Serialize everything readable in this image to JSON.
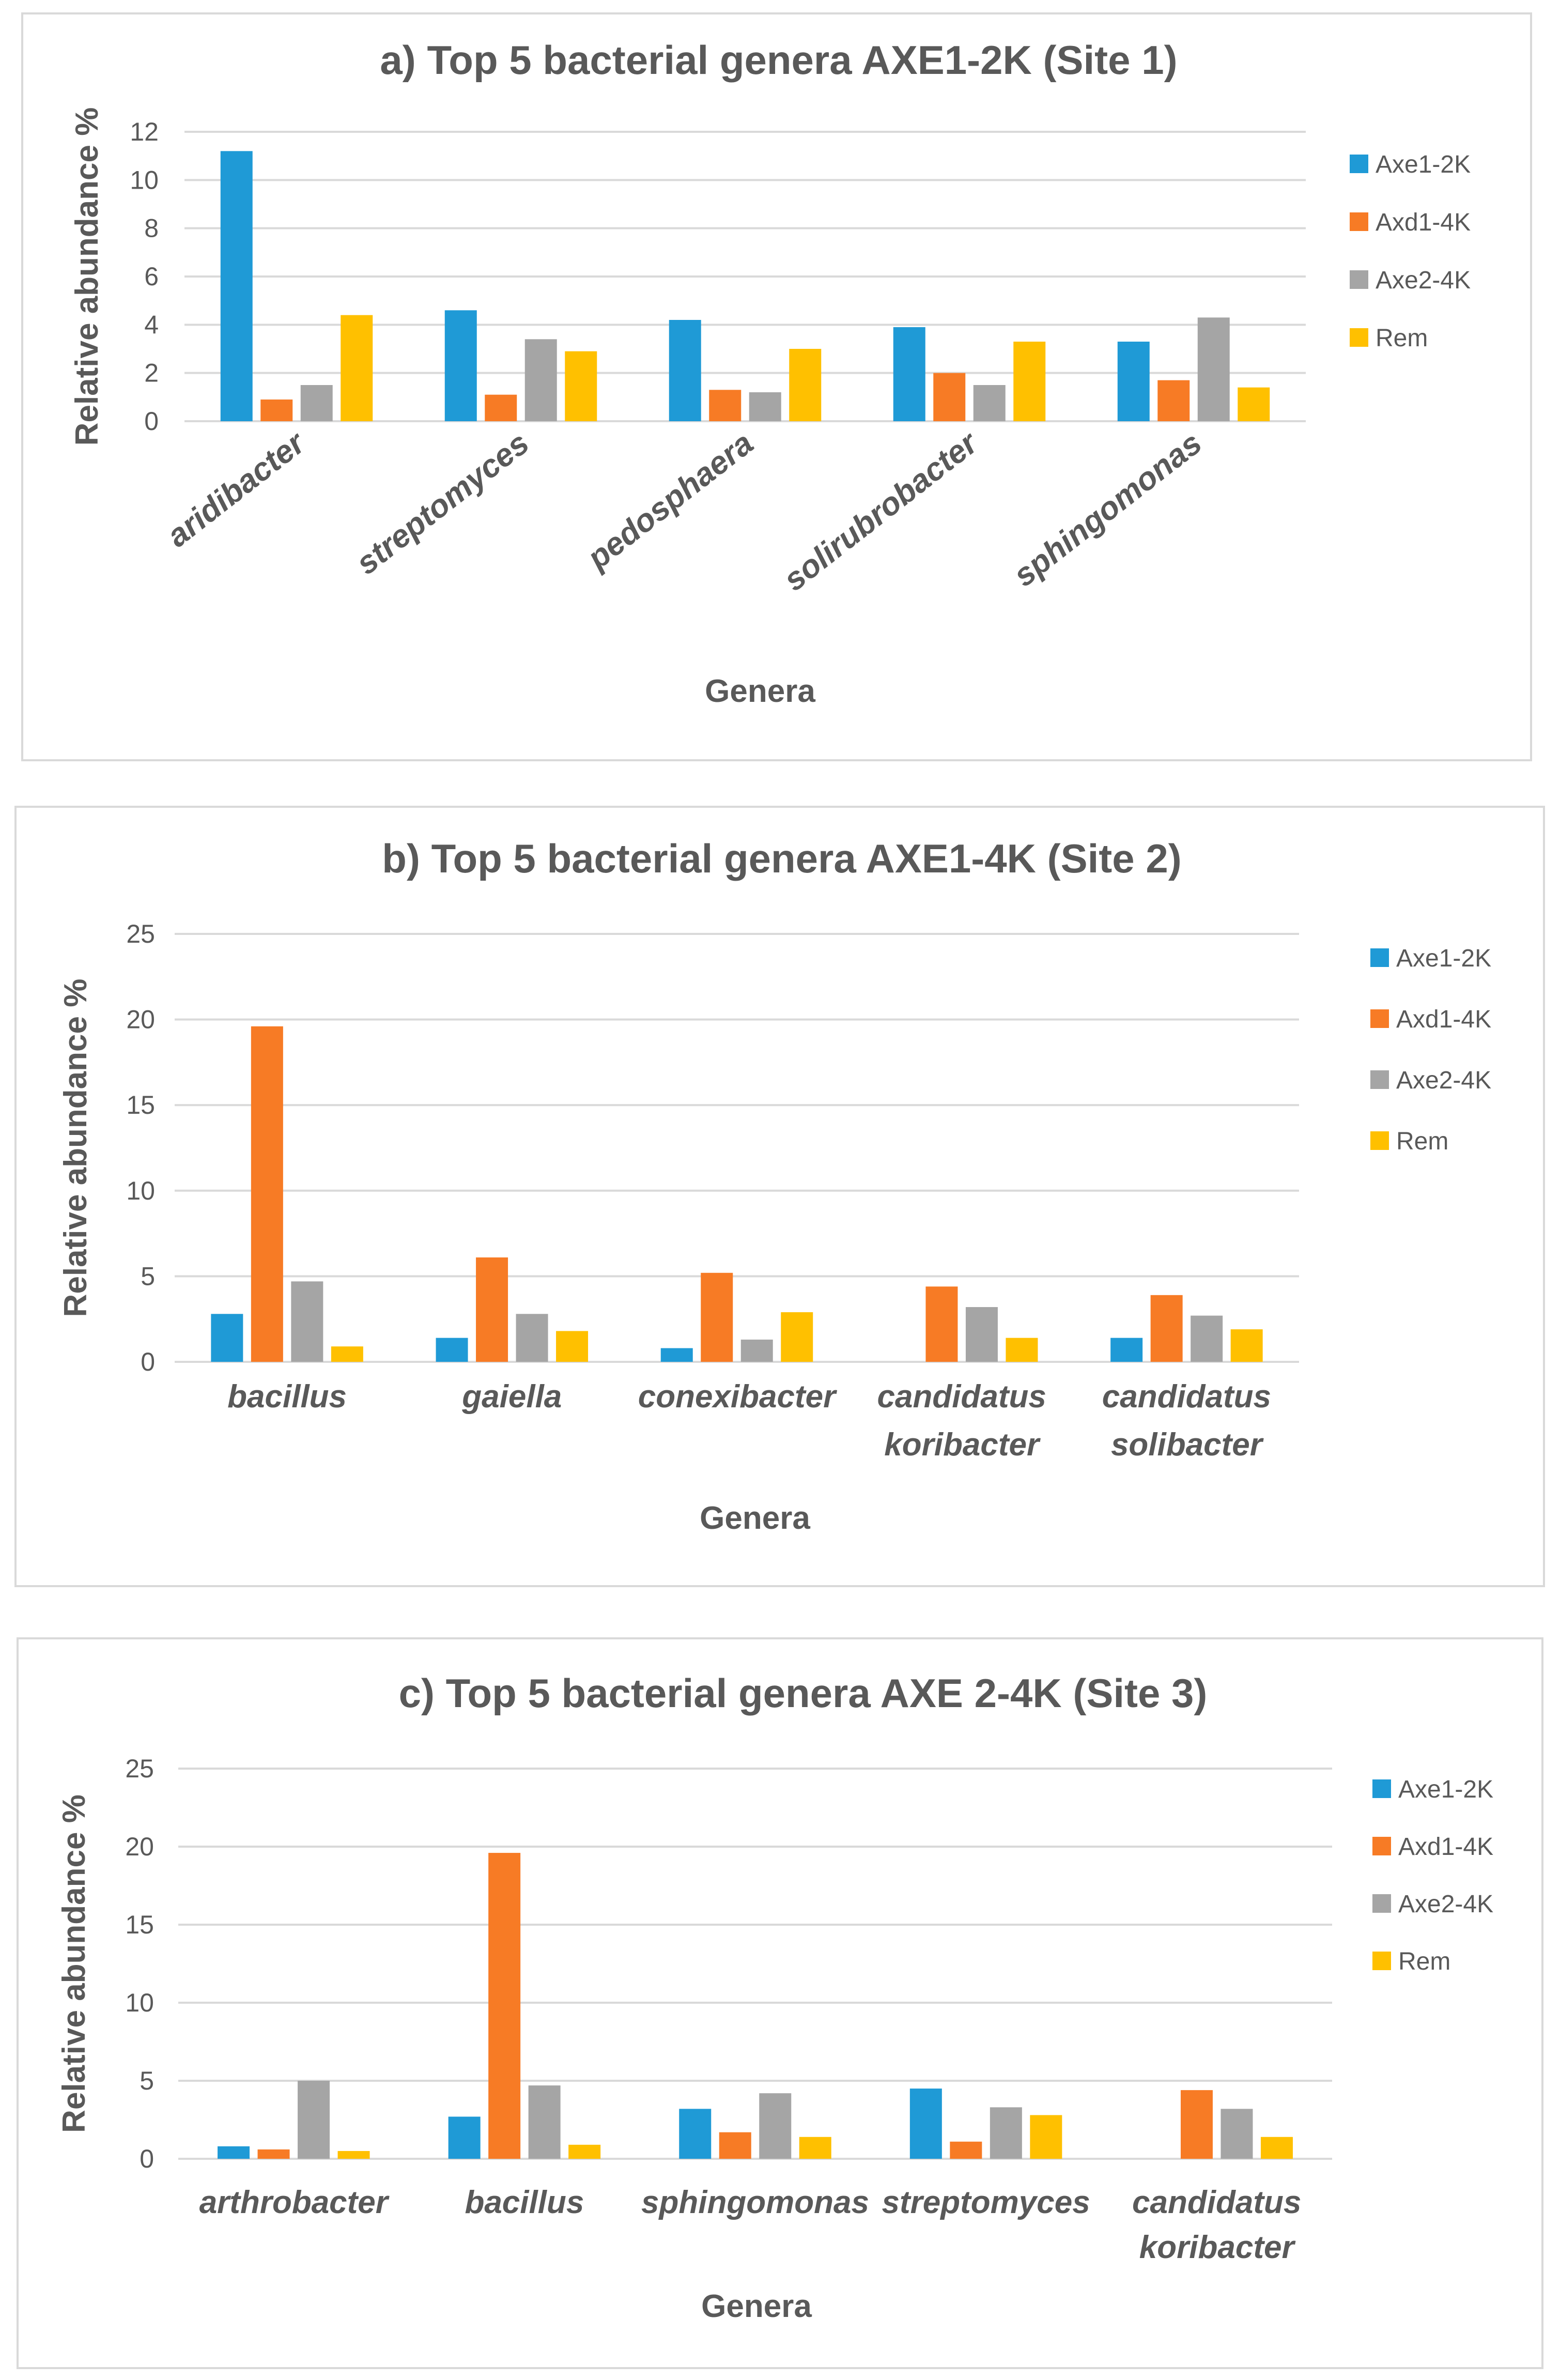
{
  "chart_data": [
    {
      "type": "bar",
      "title": "a) Top 5 bacterial genera AXE1-2K (Site 1)",
      "xlabel": "Genera",
      "ylabel": "Relative abundance %",
      "ylim": [
        0,
        12
      ],
      "yticks": [
        "0",
        "2",
        "4",
        "6",
        "8",
        "10",
        "12"
      ],
      "grid": true,
      "legend_position": "right",
      "rotated_labels": true,
      "categories": [
        [
          "aridibacter"
        ],
        [
          "streptomyces"
        ],
        [
          "pedosphaera"
        ],
        [
          "solirubrobacter"
        ],
        [
          "sphingomonas"
        ]
      ],
      "series": [
        {
          "name": "Axe1-2K",
          "color": "#1f9ad6",
          "values": [
            11.2,
            4.6,
            4.2,
            3.9,
            3.3
          ]
        },
        {
          "name": "Axd1-4K",
          "color": "#f77b25",
          "values": [
            0.9,
            1.1,
            1.3,
            2.0,
            1.7
          ]
        },
        {
          "name": "Axe2-4K",
          "color": "#a5a5a5",
          "values": [
            1.5,
            3.4,
            1.2,
            1.5,
            4.3
          ]
        },
        {
          "name": "Rem",
          "color": "#ffc000",
          "values": [
            4.4,
            2.9,
            3.0,
            3.3,
            1.4
          ]
        }
      ]
    },
    {
      "type": "bar",
      "title": "b) Top 5 bacterial genera AXE1-4K (Site 2)",
      "xlabel": "Genera",
      "ylabel": "Relative abundance %",
      "ylim": [
        0,
        25
      ],
      "yticks": [
        "0",
        "5",
        "10",
        "15",
        "20",
        "25"
      ],
      "grid": true,
      "legend_position": "right",
      "rotated_labels": false,
      "categories": [
        [
          "bacillus"
        ],
        [
          "gaiella"
        ],
        [
          "conexibacter"
        ],
        [
          "candidatus",
          "koribacter"
        ],
        [
          "candidatus",
          "solibacter"
        ]
      ],
      "series": [
        {
          "name": "Axe1-2K",
          "color": "#1f9ad6",
          "values": [
            2.8,
            1.4,
            0.8,
            0,
            1.4
          ]
        },
        {
          "name": "Axd1-4K",
          "color": "#f77b25",
          "values": [
            19.6,
            6.1,
            5.2,
            4.4,
            3.9
          ]
        },
        {
          "name": "Axe2-4K",
          "color": "#a5a5a5",
          "values": [
            4.7,
            2.8,
            1.3,
            3.2,
            2.7
          ]
        },
        {
          "name": "Rem",
          "color": "#ffc000",
          "values": [
            0.9,
            1.8,
            2.9,
            1.4,
            1.9
          ]
        }
      ]
    },
    {
      "type": "bar",
      "title": "c) Top 5 bacterial genera AXE 2-4K (Site 3)",
      "xlabel": "Genera",
      "ylabel": "Relative abundance %",
      "ylim": [
        0,
        25
      ],
      "yticks": [
        "0",
        "5",
        "10",
        "15",
        "20",
        "25"
      ],
      "grid": true,
      "legend_position": "right",
      "rotated_labels": false,
      "categories": [
        [
          "arthrobacter"
        ],
        [
          "bacillus"
        ],
        [
          "sphingomonas"
        ],
        [
          "streptomyces"
        ],
        [
          "candidatus",
          "koribacter"
        ]
      ],
      "series": [
        {
          "name": "Axe1-2K",
          "color": "#1f9ad6",
          "values": [
            0.8,
            2.7,
            3.2,
            4.5,
            0
          ]
        },
        {
          "name": "Axd1-4K",
          "color": "#f77b25",
          "values": [
            0.6,
            19.6,
            1.7,
            1.1,
            4.4
          ]
        },
        {
          "name": "Axe2-4K",
          "color": "#a5a5a5",
          "values": [
            5.0,
            4.7,
            4.2,
            3.3,
            3.2
          ]
        },
        {
          "name": "Rem",
          "color": "#ffc000",
          "values": [
            0.5,
            0.9,
            1.4,
            2.8,
            1.4
          ]
        }
      ]
    }
  ]
}
